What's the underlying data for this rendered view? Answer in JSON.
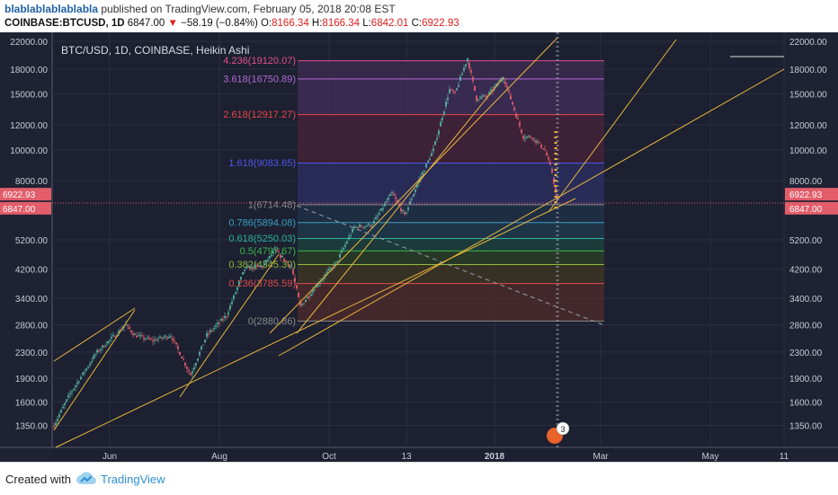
{
  "header": {
    "user": "blablablablablabla",
    "published_text": "published on TradingView.com, February 05, 2018 20:08 EST",
    "symbol": "COINBASE:BTCUSD, 1D",
    "last": "6847.00",
    "change": "−58.19 (−0.84%)",
    "o_label": "O:",
    "o_value": "8166.34",
    "h_label": "H:",
    "h_value": "8166.34",
    "l_label": "L:",
    "l_value": "6842.01",
    "c_label": "C:",
    "c_value": "6922.93"
  },
  "footer": {
    "created_with": "Created with",
    "brand": "TradingView",
    "logo_icon": "tradingview-cloud-icon"
  },
  "colors": {
    "background": "#1c2030",
    "up": "#56b5a3",
    "down": "#e35d6a",
    "trend": "#e8b73c",
    "grid": "#2a2f42"
  },
  "chart_data": {
    "type": "candlestick",
    "title": "BTC/USD, 1D, COINBASE, Heikin Ashi",
    "y_scale": "log",
    "ylim": [
      1150,
      23500
    ],
    "y_ticks": [
      "22000.00",
      "18000.00",
      "15000.00",
      "12000.00",
      "10000.00",
      "8000.00",
      "5200.00",
      "4200.00",
      "3400.00",
      "2800.00",
      "2300.00",
      "1900.00",
      "1600.00",
      "1350.00"
    ],
    "x_ticks": [
      "Jun",
      "Aug",
      "Oct",
      "13",
      "2018",
      "Mar",
      "May",
      "11"
    ],
    "price_labels": [
      "6922.93",
      "6847.00"
    ],
    "series_approx": [
      [
        "2017-05-01",
        1350
      ],
      [
        "2017-05-10",
        1700
      ],
      [
        "2017-05-25",
        2300
      ],
      [
        "2017-06-10",
        2800
      ],
      [
        "2017-06-15",
        2600
      ],
      [
        "2017-06-25",
        2500
      ],
      [
        "2017-07-05",
        2600
      ],
      [
        "2017-07-16",
        1950
      ],
      [
        "2017-07-25",
        2600
      ],
      [
        "2017-08-05",
        3000
      ],
      [
        "2017-08-15",
        4200
      ],
      [
        "2017-08-25",
        4300
      ],
      [
        "2017-09-01",
        4800
      ],
      [
        "2017-09-10",
        4300
      ],
      [
        "2017-09-15",
        3200
      ],
      [
        "2017-09-25",
        3800
      ],
      [
        "2017-10-05",
        4400
      ],
      [
        "2017-10-15",
        5700
      ],
      [
        "2017-10-25",
        5800
      ],
      [
        "2017-11-05",
        7300
      ],
      [
        "2017-11-12",
        6200
      ],
      [
        "2017-11-20",
        8000
      ],
      [
        "2017-11-28",
        10000
      ],
      [
        "2017-12-07",
        15500
      ],
      [
        "2017-12-10",
        15000
      ],
      [
        "2017-12-17",
        19500
      ],
      [
        "2017-12-22",
        14500
      ],
      [
        "2017-12-28",
        14800
      ],
      [
        "2018-01-06",
        17000
      ],
      [
        "2018-01-10",
        14500
      ],
      [
        "2018-01-17",
        11000
      ],
      [
        "2018-01-22",
        11000
      ],
      [
        "2018-01-29",
        10000
      ],
      [
        "2018-02-02",
        8500
      ],
      [
        "2018-02-05",
        6850
      ]
    ],
    "fibonacci": [
      {
        "ratio": "4.236",
        "price": 19120.07,
        "label": "4.236(19120.07)",
        "color": "#e0508e"
      },
      {
        "ratio": "3.618",
        "price": 16750.89,
        "label": "3.618(16750.89)",
        "color": "#b06ad8"
      },
      {
        "ratio": "2.618",
        "price": 12917.27,
        "label": "2.618(12917.27)",
        "color": "#e94646"
      },
      {
        "ratio": "1.618",
        "price": 9083.65,
        "label": "1.618(9083.65)",
        "color": "#4c57e8"
      },
      {
        "ratio": "1",
        "price": 6714.48,
        "label": "1(6714.48)",
        "color": "#8a8a8a"
      },
      {
        "ratio": "0.786",
        "price": 5894.08,
        "label": "0.786(5894.08)",
        "color": "#3a9ec4"
      },
      {
        "ratio": "0.618",
        "price": 5250.03,
        "label": "0.618(5250.03)",
        "color": "#2bb0a0"
      },
      {
        "ratio": "0.5",
        "price": 4797.67,
        "label": "0.5(4797.67)",
        "color": "#38b648"
      },
      {
        "ratio": "0.382",
        "price": 4345.3,
        "label": "0.382(4345.30)",
        "color": "#8fbb3a"
      },
      {
        "ratio": "0.236",
        "price": 3785.59,
        "label": "0.236(3785.59)",
        "color": "#e04a4a"
      },
      {
        "ratio": "0",
        "price": 2880.86,
        "label": "0(2880.86)",
        "color": "#8a8a8a"
      }
    ],
    "event_badge": "3"
  }
}
